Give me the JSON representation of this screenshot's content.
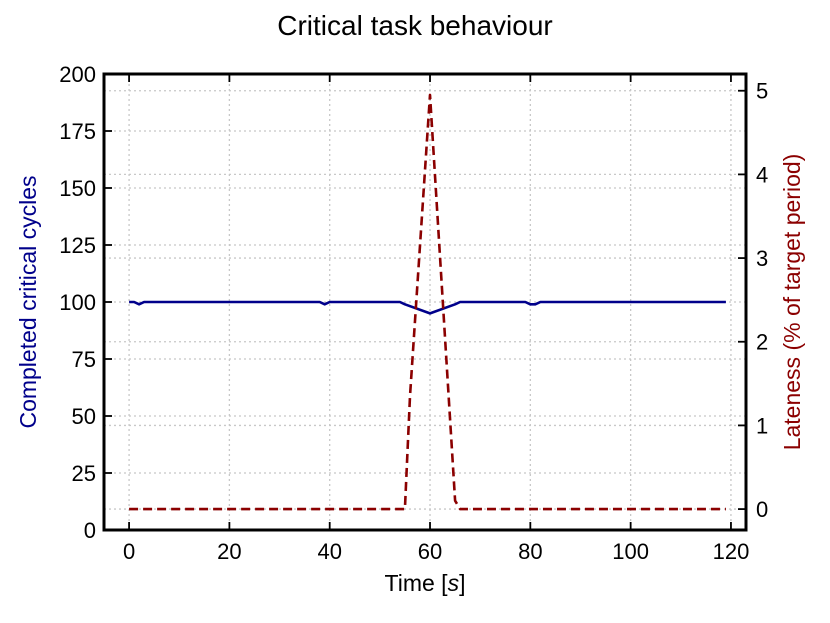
{
  "chart_data": {
    "type": "line",
    "title": "Critical task behaviour",
    "xlabel_prefix": "Time [",
    "xlabel_unit": "s",
    "xlabel_suffix": "]",
    "ylabel_left": "Completed critical cycles",
    "ylabel_right": "Lateness (% of target period)",
    "xlim": [
      -5,
      123
    ],
    "ylim_left": [
      0,
      200
    ],
    "ylim_right": [
      -0.25,
      5.2
    ],
    "x_ticks": [
      0,
      20,
      40,
      60,
      80,
      100,
      120
    ],
    "y_left_ticks": [
      0,
      25,
      50,
      75,
      100,
      125,
      150,
      175,
      200
    ],
    "y_right_ticks": [
      0,
      1,
      2,
      3,
      4,
      5
    ],
    "grid": true,
    "colors": {
      "left_axis": "#00008b",
      "right_axis": "#8b0000"
    },
    "series": [
      {
        "axis": "left",
        "style": "solid",
        "color": "#00008b",
        "x": [
          0,
          1,
          2,
          3,
          4,
          37,
          38,
          39,
          40,
          41,
          54,
          55,
          60,
          65,
          66,
          79,
          80,
          81,
          82,
          83,
          119
        ],
        "y": [
          100,
          100,
          99,
          100,
          100,
          100,
          100,
          99,
          100,
          100,
          100,
          99,
          95,
          99,
          100,
          100,
          99,
          99,
          100,
          100,
          100
        ]
      },
      {
        "axis": "right",
        "style": "dashed",
        "color": "#8b0000",
        "x": [
          0,
          55,
          56,
          60,
          65,
          66,
          119
        ],
        "y": [
          0,
          0,
          1.35,
          4.95,
          0.1,
          0,
          0
        ]
      }
    ]
  }
}
